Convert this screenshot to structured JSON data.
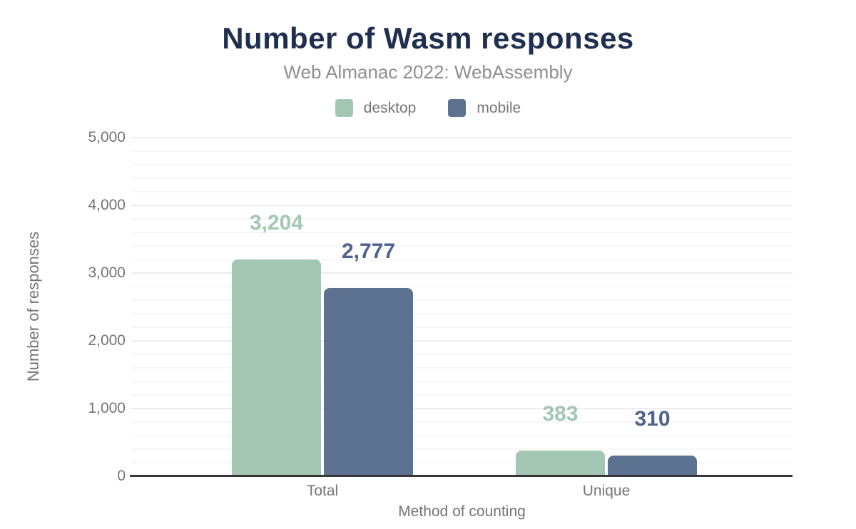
{
  "chart_data": {
    "type": "bar",
    "title": "Number of Wasm responses",
    "subtitle": "Web Almanac 2022: WebAssembly",
    "xlabel": "Method of counting",
    "ylabel": "Number of responses",
    "categories": [
      "Total",
      "Unique"
    ],
    "series": [
      {
        "name": "desktop",
        "color": "#a4c7b3",
        "label_color": "#a4c7b3",
        "values": [
          3204,
          383
        ],
        "value_labels": [
          "3,204",
          "383"
        ]
      },
      {
        "name": "mobile",
        "color": "#5d7190",
        "label_color": "#4d638d",
        "values": [
          2777,
          310
        ],
        "value_labels": [
          "2,777",
          "310"
        ]
      }
    ],
    "ylim": [
      0,
      5000
    ],
    "y_ticks": [
      {
        "value": 0,
        "label": "0"
      },
      {
        "value": 1000,
        "label": "1,000"
      },
      {
        "value": 2000,
        "label": "2,000"
      },
      {
        "value": 3000,
        "label": "3,000"
      },
      {
        "value": 4000,
        "label": "4,000"
      },
      {
        "value": 5000,
        "label": "5,000"
      }
    ],
    "y_minor_step": 200,
    "y_major_step": 1000,
    "grid": true,
    "legend_position": "top"
  },
  "colors": {
    "title": "#1f2f4f",
    "subtitle": "#8f8f8f",
    "axis_text": "#757575",
    "axis_line": "#373737",
    "background": "#ffffff"
  }
}
